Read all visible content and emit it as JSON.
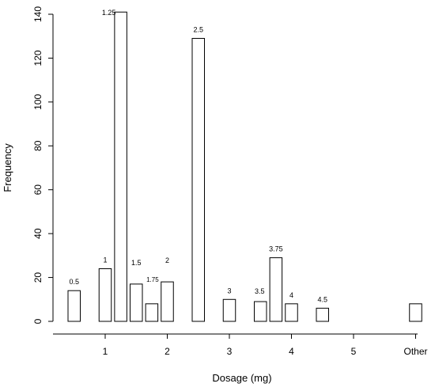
{
  "chart_data": {
    "type": "bar",
    "xlabel": "Dosage (mg)",
    "ylabel": "Frequency",
    "ylim": [
      0,
      140
    ],
    "y_ticks": [
      0,
      20,
      40,
      60,
      80,
      100,
      120,
      140
    ],
    "x_ticks": [
      {
        "value": 1,
        "label": "1"
      },
      {
        "value": 2,
        "label": "2"
      },
      {
        "value": 3,
        "label": "3"
      },
      {
        "value": 4,
        "label": "4"
      },
      {
        "value": 5,
        "label": "5"
      },
      {
        "value": 6,
        "label": "Other"
      }
    ],
    "bars": [
      {
        "x": 0.5,
        "label": "0.5",
        "value": 14
      },
      {
        "x": 1.0,
        "label": "1",
        "value": 24
      },
      {
        "x": 1.25,
        "label": "1.25",
        "value": 141
      },
      {
        "x": 1.5,
        "label": "1.5",
        "value": 17
      },
      {
        "x": 1.75,
        "label": "1.75",
        "value": 8
      },
      {
        "x": 2.0,
        "label": "2",
        "value": 18
      },
      {
        "x": 2.5,
        "label": "2.5",
        "value": 129
      },
      {
        "x": 3.0,
        "label": "3",
        "value": 10
      },
      {
        "x": 3.5,
        "label": "3.5",
        "value": 9
      },
      {
        "x": 3.75,
        "label": "3.75",
        "value": 29
      },
      {
        "x": 4.0,
        "label": "4",
        "value": 8
      },
      {
        "x": 4.5,
        "label": "4.5",
        "value": 6
      },
      {
        "x": 6.0,
        "label": "",
        "value": 8
      }
    ],
    "grid": false
  }
}
